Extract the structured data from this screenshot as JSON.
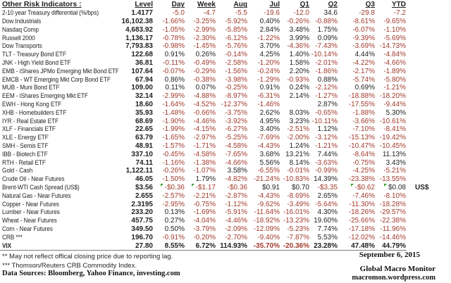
{
  "title": "Other Risk Indicators :",
  "columns": [
    "Level",
    "Day",
    "Week",
    "Aug",
    "Jul",
    "Q1",
    "Q2",
    "Q3",
    "YTD"
  ],
  "rows": [
    {
      "name": "2-10 year Treasury differential (%/bps)",
      "values": [
        "1.4177",
        "-5.0",
        "-4.7",
        "-5.5",
        "-19.6",
        "-12.0",
        "34.6",
        "-29.8",
        "-7.2"
      ]
    },
    {
      "name": "Dow Industrials",
      "values": [
        "16,102.38",
        "-1.66%",
        "-3.25%",
        "-5.92%",
        "0.40%",
        "-0.26%",
        "-0.88%",
        "-8.61%",
        "-9.65%"
      ]
    },
    {
      "name": "Nasdaq Comp",
      "values": [
        "4,683.92",
        "-1.05%",
        "-2.99%",
        "-5.85%",
        "2.84%",
        "3.48%",
        "1.75%",
        "-6.07%",
        "-1.10%"
      ]
    },
    {
      "name": "Russell 2000",
      "values": [
        "1,136.17",
        "-0.78%",
        "-2.30%",
        "-6.12%",
        "-1.22%",
        "3.99%",
        "0.09%",
        "-9.39%",
        "-5.69%"
      ]
    },
    {
      "name": "Dow Transports",
      "values": [
        "7,793.83",
        "-0.98%",
        "-1.45%",
        "-5.76%",
        "3.70%",
        "-4.36%",
        "-7.43%",
        "-3.69%",
        "-14.73%"
      ]
    },
    {
      "name": "TLT - Treasury Bond ETF",
      "values": [
        "122.68",
        "0.91%",
        "0.26%",
        "-0.14%",
        "4.25%",
        "1.40%",
        "-10.14%",
        "4.44%",
        "-4.84%"
      ]
    },
    {
      "name": "JNK - High Yield Bond ETF",
      "values": [
        "36.81",
        "-0.11%",
        "-0.49%",
        "-2.58%",
        "-1.20%",
        "1.58%",
        "-2.01%",
        "-4.22%",
        "-4.66%"
      ]
    },
    {
      "name": "EMB - iShares JPMo Emerging Mkt Bond ETF",
      "values": [
        "107.64",
        "-0.07%",
        "-0.29%",
        "-1.56%",
        "-0.24%",
        "2.20%",
        "-1.86%",
        "-2.17%",
        "-1.89%"
      ]
    },
    {
      "name": "EMCB - WT Emerging Mkt Corp Bond ETF",
      "values": [
        "67.94",
        "0.86%",
        "-0.38%",
        "-3.98%",
        "-1.29%",
        "-0.93%",
        "0.88%",
        "-5.74%",
        "-5.80%"
      ]
    },
    {
      "name": "MUB - Muni Bond ETF",
      "values": [
        "109.00",
        "0.11%",
        "0.07%",
        "-0.25%",
        "0.91%",
        "0.24%",
        "-2.12%",
        "0.69%",
        "-1.21%"
      ]
    },
    {
      "name": "EEM - iShares Emerging Mkt ETF",
      "values": [
        "32.14",
        "-2.99%",
        "-4.88%",
        "-8.97%",
        "-6.31%",
        "2.14%",
        "-1.27%",
        "-18.88%",
        "-18.20%"
      ]
    },
    {
      "name": "EWH - Hong Kong ETF",
      "values": [
        "18.60",
        "-1.64%",
        "-4.52%",
        "-12.37%",
        "-1.46%",
        "",
        "2.87%",
        "-17.55%",
        "-9.44%"
      ]
    },
    {
      "name": "XHB - Homebuilders ETF",
      "values": [
        "35.93",
        "-1.48%",
        "-0.66%",
        "-3.75%",
        "2.62%",
        "8.03%",
        "-0.65%",
        "-1.88%",
        "5.30%"
      ]
    },
    {
      "name": "IYR - Real Estate ETF",
      "values": [
        "68.69",
        "-1.90%",
        "-4.46%",
        "-3.92%",
        "4.95%",
        "3.23%",
        "-10.11%",
        "-3.66%",
        "-10.61%"
      ]
    },
    {
      "name": "XLF - Financials ETF",
      "values": [
        "22.65",
        "-1.99%",
        "-4.15%",
        "-6.27%",
        "3.40%",
        "-2.51%",
        "1.12%",
        "-7.10%",
        "-8.41%"
      ]
    },
    {
      "name": "XLE - Energy ETF",
      "values": [
        "63.79",
        "-1.65%",
        "-2.97%",
        "-5.25%",
        "-7.69%",
        "-2.00%",
        "-3.12%",
        "-15.13%",
        "-19.42%"
      ]
    },
    {
      "name": "SMH - Semis ETF",
      "values": [
        "48.91",
        "-1.57%",
        "-1.71%",
        "-4.58%",
        "-4.43%",
        "1.24%",
        "-1.21%",
        "-10.47%",
        "-10.45%"
      ]
    },
    {
      "name": "IBB - Biotech ETF",
      "values": [
        "337.10",
        "-0.45%",
        "-4.58%",
        "-7.65%",
        "3.68%",
        "13.21%",
        "7.44%",
        "-8.64%",
        "11.13%"
      ]
    },
    {
      "name": "RTH - Retail ETF",
      "values": [
        "74.11",
        "-1.16%",
        "-1.38%",
        "-4.66%",
        "5.56%",
        "8.14%",
        "-3.63%",
        "-0.75%",
        "3.43%"
      ]
    },
    {
      "name": "Gold - Cash",
      "values": [
        "1,122.11",
        "-0.26%",
        "-1.07%",
        "3.58%",
        "-6.55%",
        "-0.01%",
        "-0.99%",
        "-4.25%",
        "-5.21%"
      ]
    },
    {
      "name": "Crude Oil - Near Futures",
      "values": [
        "46.05",
        "-1.50%",
        "1.79%",
        "-4.82%",
        "-21.24%",
        "-10.83%",
        "14.39%",
        "-23.38%",
        "-13.55%"
      ]
    },
    {
      "name": "Brent-WTI Cash Spread (US$)",
      "values": [
        "$3.56",
        "-$0.36",
        "-$1.17",
        "-$0.36",
        "$0.91",
        "$0.70",
        "-$3.35",
        "-$0.62",
        "$0.08"
      ],
      "suffix": "US$",
      "markers": [
        1,
        2,
        7,
        8
      ]
    },
    {
      "name": "Natural Gas - Near Futures",
      "values": [
        "2.655",
        "-2.57%",
        "-2.21%",
        "-2.87%",
        "-4.43%",
        "-8.69%",
        "2.65%",
        "-7.46%",
        "-8.10%"
      ]
    },
    {
      "name": "Copper - Near Futures",
      "values": [
        "2.3195",
        "-2.95%",
        "-0.75%",
        "-1.12%",
        "-9.62%",
        "-3.49%",
        "-5.64%",
        "-11.30%",
        "-18.28%"
      ]
    },
    {
      "name": "Lumber - Near Futures",
      "values": [
        "233.20",
        "0.13%",
        "-1.69%",
        "-5.91%",
        "-11.64%",
        "-16.01%",
        "4.30%",
        "-18.26%",
        "-29.57%"
      ]
    },
    {
      "name": "Wheat - Near Futures",
      "values": [
        "457.75",
        "0.27%",
        "-4.04%",
        "-4.46%",
        "-18.92%",
        "-13.23%",
        "19.60%",
        "-25.66%",
        "-22.38%"
      ]
    },
    {
      "name": "Corn - Near Futures",
      "values": [
        "349.50",
        "0.50%",
        "-3.79%",
        "-2.09%",
        "-12.09%",
        "-5.23%",
        "7.74%",
        "-17.18%",
        "-11.96%"
      ]
    },
    {
      "name": "CRB ***",
      "values": [
        "196.70",
        "-0.91%",
        "-0.20%",
        "-2.70%",
        "-9.40%",
        "-7.87%",
        "5.53%",
        "-12.02%",
        "-14.46%"
      ]
    },
    {
      "name": "VIX",
      "values": [
        "27.80",
        "8.55%",
        "6.72%",
        "114.93%",
        "-35.70%",
        "-20.36%",
        "23.28%",
        "47.48%",
        "44.79%"
      ],
      "bold": true
    }
  ],
  "footer": {
    "note_reporting": "** May not reflect offical closing price due to reporting lag.",
    "note_crb": "*** Thomson/Reuters CRB Commodity Index.",
    "data_sources": "Data Sources:  Bloomberg,  Yahoo Finance, investing.com",
    "date": "September 6, 2015",
    "publication": "Global Macro Monitor",
    "website": "macromon.wordpress.com"
  },
  "colors": {
    "negative_text": "#a23b2d",
    "positive_text": "#1f1f1f",
    "flag_green": "#35a52f",
    "table_rule": "#7f7f7f"
  }
}
